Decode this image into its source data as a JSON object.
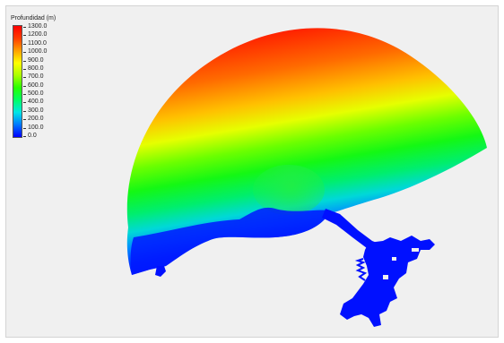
{
  "legend": {
    "title": "Profundidad (m)",
    "unit": "m",
    "colorscale": [
      "#0000ff",
      "#0078ff",
      "#00e6e6",
      "#00ff64",
      "#28ff00",
      "#aaff00",
      "#ffff00",
      "#ffa000",
      "#ff3c00",
      "#ff0000"
    ],
    "ticks": [
      {
        "value": 1300,
        "label": "1300.0"
      },
      {
        "value": 1200,
        "label": "1200.0"
      },
      {
        "value": 1100,
        "label": "1100.0"
      },
      {
        "value": 1000,
        "label": "1000.0"
      },
      {
        "value": 900,
        "label": "900.0"
      },
      {
        "value": 800,
        "label": "800.0"
      },
      {
        "value": 700,
        "label": "700.0"
      },
      {
        "value": 600,
        "label": "600.0"
      },
      {
        "value": 500,
        "label": "500.0"
      },
      {
        "value": 400,
        "label": "400.0"
      },
      {
        "value": 300,
        "label": "300.0"
      },
      {
        "value": 200,
        "label": "200.0"
      },
      {
        "value": 100,
        "label": "100.0"
      },
      {
        "value": 0,
        "label": "0.0"
      }
    ],
    "range": [
      0,
      1300
    ]
  },
  "map": {
    "background_color": "#f0f0f0",
    "shallow_water_color": "#0010ff"
  }
}
